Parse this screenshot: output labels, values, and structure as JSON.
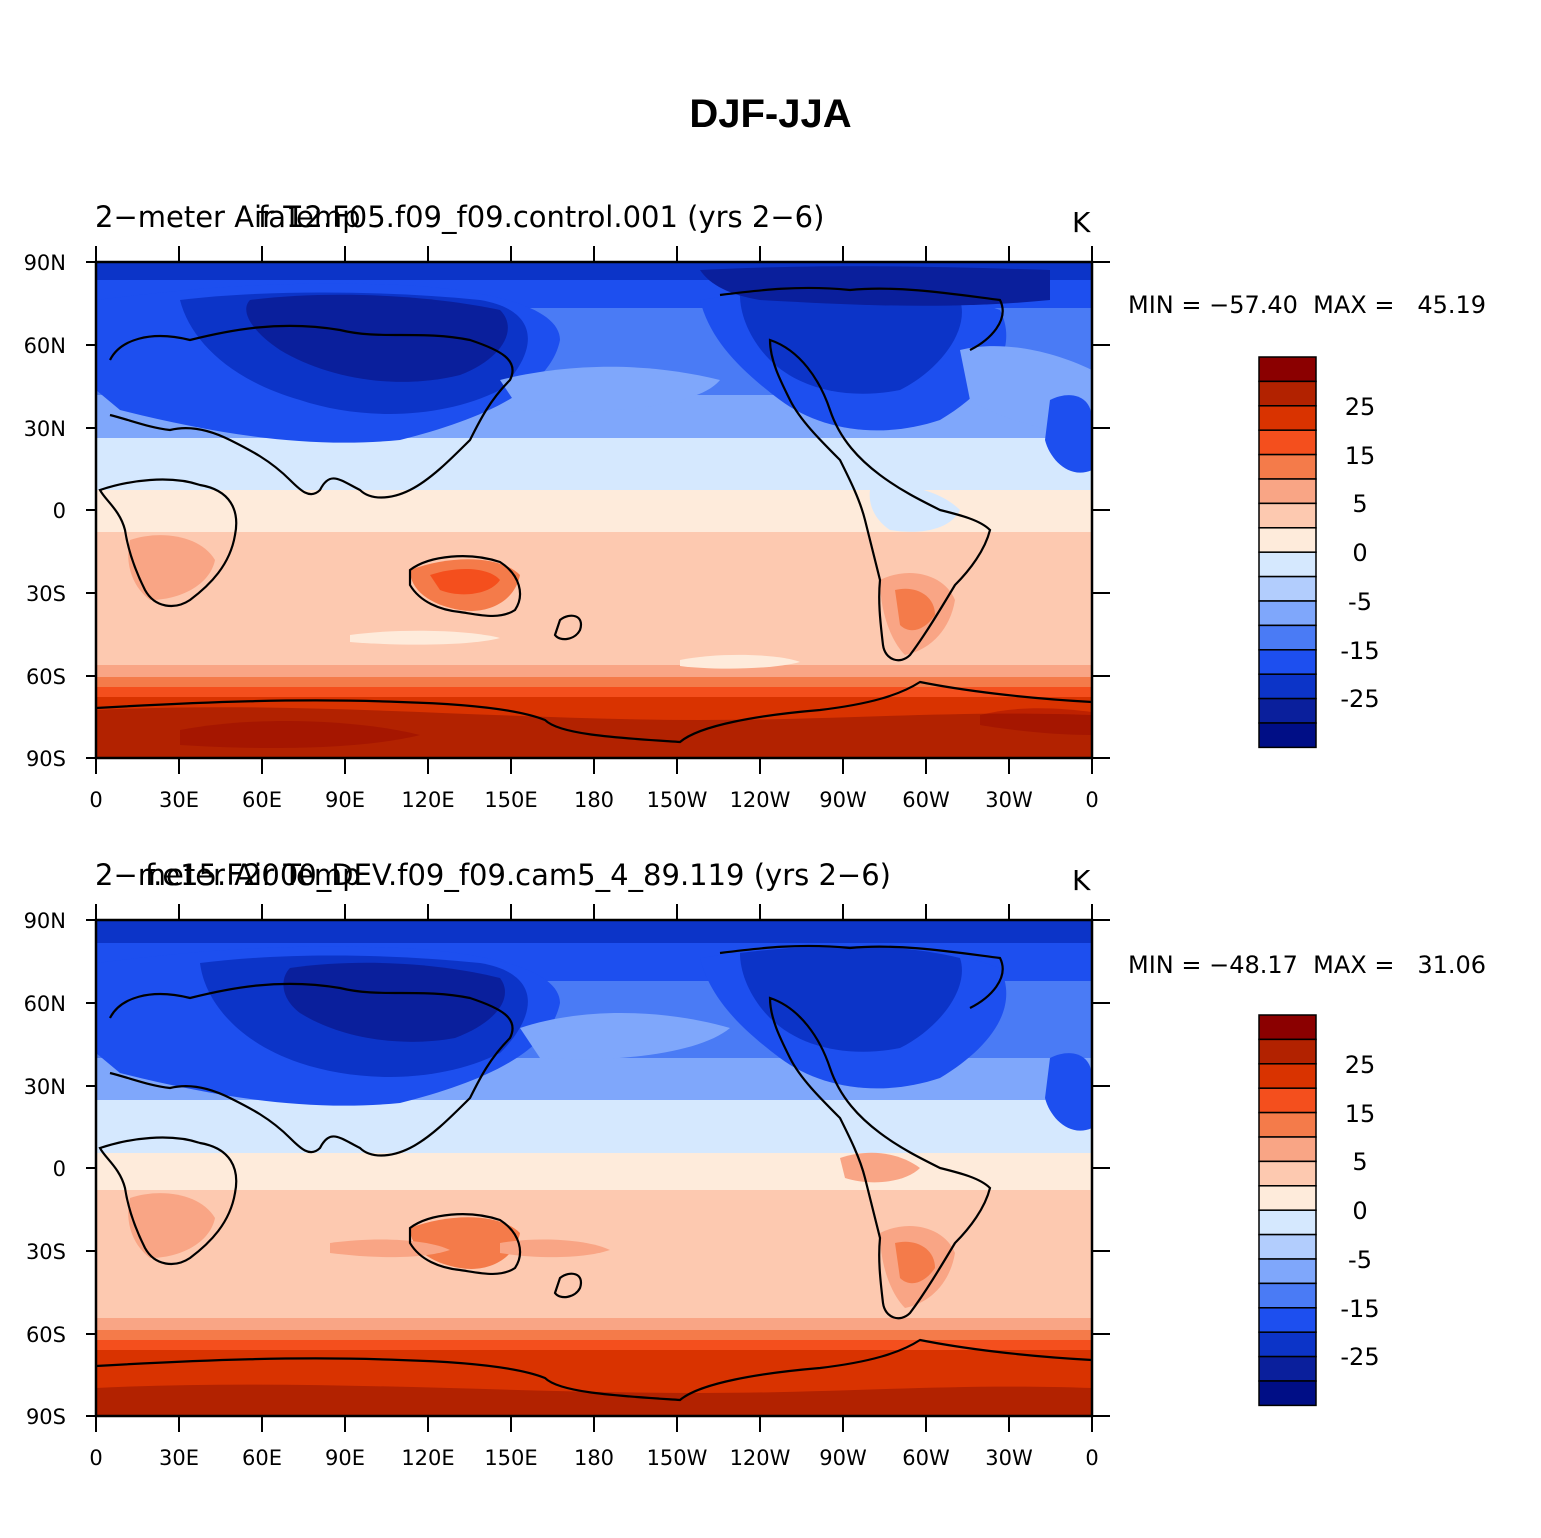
{
  "figure_title": "DJF-JJA",
  "lat_labels": [
    "90N",
    "60N",
    "30N",
    "0",
    "30S",
    "60S",
    "90S"
  ],
  "lon_labels": [
    "0",
    "30E",
    "60E",
    "90E",
    "120E",
    "150E",
    "180",
    "150W",
    "120W",
    "90W",
    "60W",
    "30W",
    "0"
  ],
  "colorbar": {
    "labels": [
      "25",
      "15",
      "5",
      "0",
      "-5",
      "-15",
      "-25"
    ],
    "colors": [
      "#8b0000",
      "#b22200",
      "#d93300",
      "#f44f1d",
      "#f47b4a",
      "#f9a585",
      "#fdc9b0",
      "#feebdb",
      "#d5e8fe",
      "#b2cdfd",
      "#7fa7fb",
      "#4a7bf5",
      "#1d4fef",
      "#0c34c8",
      "#0a1f9c",
      "#000e86"
    ]
  },
  "panels": [
    {
      "title_left": "2−meter Air Temp",
      "title_case": "fa12.F05.f09_f09.control.001 (yrs 2−6)",
      "units": "K",
      "minmax": "MIN = −57.40  MAX =   45.19"
    },
    {
      "title_left": "2−meter Air Temp",
      "title_case": "f.e15.F2000_DEV.f09_f09.cam5_4_89.119 (yrs 2−6)",
      "units": "K",
      "minmax": "MIN = −48.17  MAX =   31.06"
    }
  ]
}
